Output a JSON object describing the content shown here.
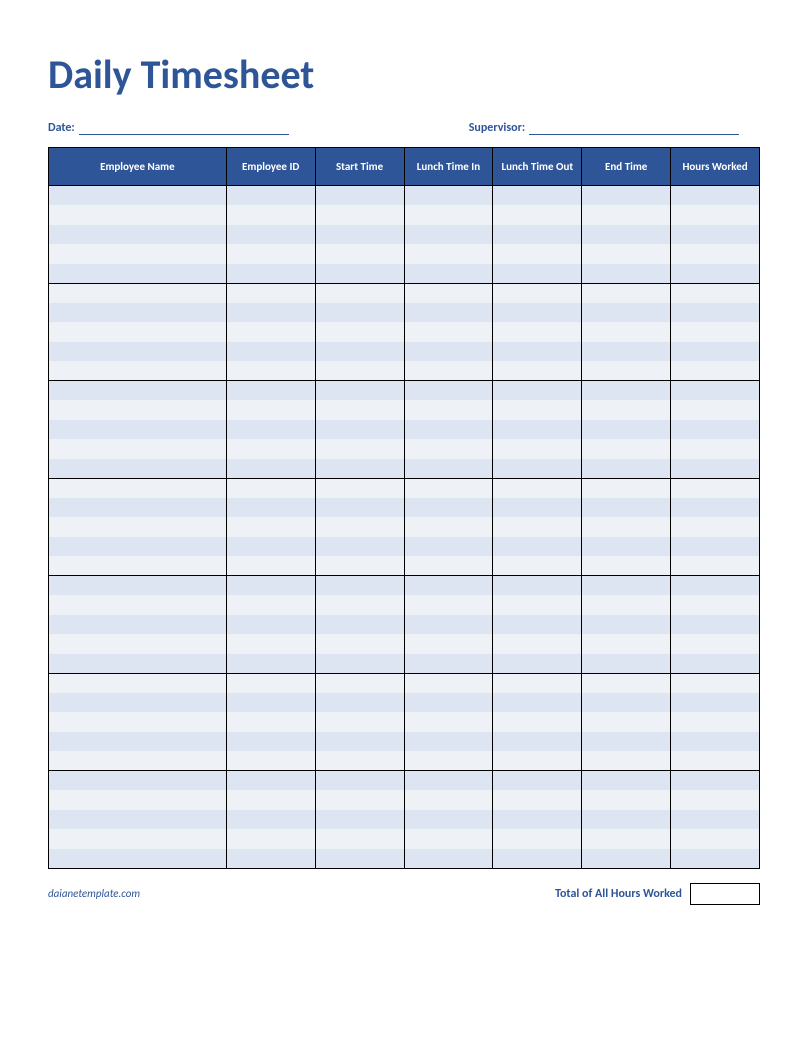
{
  "title": "Daily Timesheet",
  "meta": {
    "date_label": "Date:",
    "supervisor_label": "Supervisor:"
  },
  "table": {
    "columns": [
      "Employee Name",
      "Employee ID",
      "Start Time",
      "Lunch Time In",
      "Lunch Time Out",
      "End Time",
      "Hours Worked"
    ],
    "column_widths_pct": [
      25,
      12.5,
      12.5,
      12.5,
      12.5,
      12.5,
      12.5
    ],
    "header_bg": "#2e5597",
    "header_text_color": "#ffffff",
    "row_colors": {
      "even": "#dce5f1",
      "odd": "#eef1f5"
    },
    "border_color": "#000000",
    "groups": 7,
    "rows_per_group": 5,
    "total_rows": 35
  },
  "footer": {
    "brand": "daianetemplate.com",
    "total_label": "Total of All Hours Worked"
  },
  "colors": {
    "accent": "#2e5597",
    "background": "#ffffff"
  }
}
